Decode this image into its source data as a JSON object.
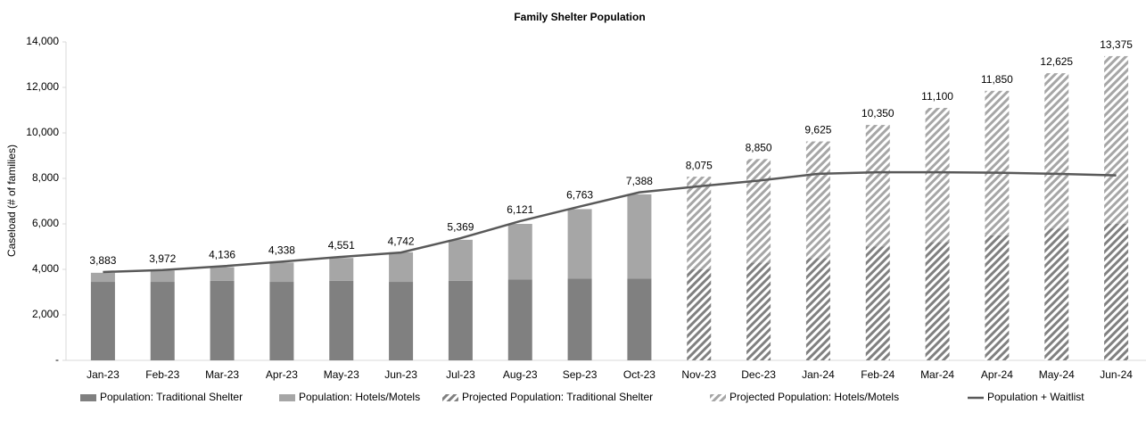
{
  "chart_data": {
    "type": "bar",
    "title": "Family Shelter Population",
    "y_label": "Caseload (# of families)",
    "categories": [
      "Jan-23",
      "Feb-23",
      "Mar-23",
      "Apr-23",
      "May-23",
      "Jun-23",
      "Jul-23",
      "Aug-23",
      "Sep-23",
      "Oct-23",
      "Nov-23",
      "Dec-23",
      "Jan-24",
      "Feb-24",
      "Mar-24",
      "Apr-24",
      "May-24",
      "Jun-24"
    ],
    "series": [
      {
        "name": "Population: Traditional Shelter",
        "color": "#808080",
        "type": "bar",
        "hatch": false,
        "values": [
          3450,
          3450,
          3500,
          3450,
          3500,
          3450,
          3500,
          3550,
          3600,
          3600,
          null,
          null,
          null,
          null,
          null,
          null,
          null,
          null
        ]
      },
      {
        "name": "Population: Hotels/Motels",
        "color": "#a6a6a6",
        "type": "bar",
        "hatch": false,
        "values": [
          400,
          500,
          600,
          850,
          1000,
          1300,
          1800,
          2450,
          3050,
          3700,
          null,
          null,
          null,
          null,
          null,
          null,
          null,
          null
        ]
      },
      {
        "name": "Projected Population: Traditional Shelter",
        "color": "#808080",
        "type": "bar",
        "hatch": true,
        "values": [
          null,
          null,
          null,
          null,
          null,
          null,
          null,
          null,
          null,
          null,
          4000,
          4300,
          4500,
          5000,
          5200,
          5500,
          5800,
          6000
        ]
      },
      {
        "name": "Projected Population: Hotels/Motels",
        "color": "#a6a6a6",
        "type": "bar",
        "hatch": true,
        "values": [
          null,
          null,
          null,
          null,
          null,
          null,
          null,
          null,
          null,
          null,
          4075,
          4550,
          5125,
          5350,
          5900,
          6350,
          6825,
          7375
        ]
      },
      {
        "name": "Population + Waitlist",
        "color": "#595959",
        "type": "line",
        "values": [
          3883,
          3972,
          4136,
          4338,
          4551,
          4742,
          5369,
          6121,
          6763,
          7388,
          7650,
          7900,
          8200,
          8270,
          8270,
          8250,
          8200,
          8130
        ]
      }
    ],
    "data_labels": {
      "values": [
        3883,
        3972,
        4136,
        4338,
        4551,
        4742,
        5369,
        6121,
        6763,
        7388,
        8075,
        8850,
        9625,
        10350,
        11100,
        11850,
        12625,
        13375
      ],
      "value_labels": [
        "3,883",
        "3,972",
        "4,136",
        "4,338",
        "4,551",
        "4,742",
        "5,369",
        "6,121",
        "6,763",
        "7,388",
        "8,075",
        "8,850",
        "9,625",
        "10,350",
        "11,100",
        "11,850",
        "12,625",
        "13,375"
      ]
    },
    "ylim": [
      0,
      14000
    ],
    "yticks": [
      {
        "value": 0,
        "label": "-"
      },
      {
        "value": 2000,
        "label": "2,000"
      },
      {
        "value": 4000,
        "label": "4,000"
      },
      {
        "value": 6000,
        "label": "6,000"
      },
      {
        "value": 8000,
        "label": "8,000"
      },
      {
        "value": 10000,
        "label": "10,000"
      },
      {
        "value": 12000,
        "label": "12,000"
      },
      {
        "value": 14000,
        "label": "14,000"
      }
    ],
    "grid": false,
    "legend": "bottom"
  }
}
